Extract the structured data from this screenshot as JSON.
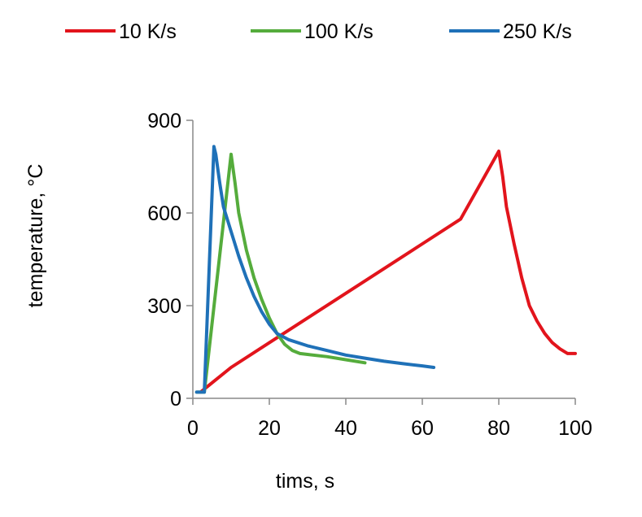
{
  "chart_data": {
    "type": "line",
    "title": "",
    "xlabel": "tims, s",
    "ylabel": "temperature, °C",
    "xlim": [
      0,
      100
    ],
    "ylim": [
      0,
      900
    ],
    "xticks": [
      0,
      20,
      40,
      60,
      80,
      100
    ],
    "yticks": [
      0,
      300,
      600,
      900
    ],
    "grid": false,
    "legend_position": "top",
    "series": [
      {
        "name": "10 K/s",
        "color": "#e2141c",
        "x": [
          2,
          10,
          20,
          30,
          40,
          50,
          60,
          70,
          80,
          81,
          82,
          84,
          86,
          88,
          90,
          92,
          94,
          96,
          98,
          100
        ],
        "y": [
          20,
          100,
          180,
          260,
          340,
          420,
          500,
          580,
          800,
          720,
          620,
          500,
          390,
          300,
          250,
          210,
          180,
          160,
          145,
          145
        ]
      },
      {
        "name": "100 K/s",
        "color": "#55ac3c",
        "x": [
          1,
          2,
          3,
          10,
          11,
          12,
          14,
          16,
          18,
          20,
          22,
          24,
          26,
          28,
          30,
          35,
          40,
          45
        ],
        "y": [
          20,
          20,
          20,
          790,
          700,
          600,
          480,
          390,
          320,
          260,
          210,
          175,
          155,
          145,
          142,
          135,
          125,
          115
        ]
      },
      {
        "name": "250 K/s",
        "color": "#1f71b8",
        "x": [
          1,
          2,
          3,
          5.5,
          6,
          7,
          8,
          10,
          12,
          14,
          16,
          18,
          20,
          22,
          25,
          30,
          35,
          40,
          45,
          50,
          55,
          60,
          63
        ],
        "y": [
          20,
          20,
          20,
          815,
          790,
          700,
          620,
          540,
          460,
          390,
          330,
          280,
          240,
          210,
          190,
          170,
          155,
          140,
          130,
          120,
          112,
          105,
          100
        ]
      }
    ]
  }
}
